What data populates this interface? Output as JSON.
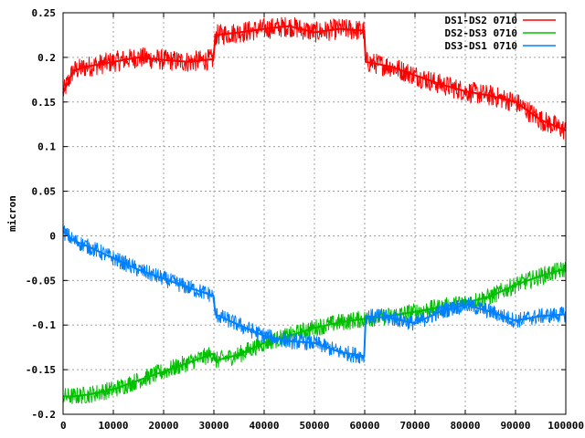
{
  "chart_data": {
    "type": "line",
    "title": "",
    "xlabel": "",
    "ylabel": "micron",
    "xlim": [
      0,
      100000
    ],
    "ylim": [
      -0.2,
      0.25
    ],
    "grid": true,
    "legend_position": "top-right",
    "x_ticks": [
      0,
      10000,
      20000,
      30000,
      40000,
      50000,
      60000,
      70000,
      80000,
      90000,
      100000
    ],
    "x_tick_labels": [
      "0",
      "10000",
      "20000",
      "30000",
      "40000",
      "50000",
      "60000",
      "70000",
      "80000",
      "90000",
      "100000"
    ],
    "y_ticks": [
      -0.2,
      -0.15,
      -0.1,
      -0.05,
      0,
      0.05,
      0.1,
      0.15,
      0.2,
      0.25
    ],
    "y_tick_labels": [
      "-0.2",
      "-0.15",
      "-0.1",
      "-0.05",
      "0",
      "0.05",
      "0.1",
      "0.15",
      "0.2",
      "0.25"
    ],
    "series": [
      {
        "name": "DS1-DS2 0710",
        "color": "#ff0000",
        "x": [
          0,
          2000,
          5000,
          10000,
          15000,
          20000,
          25000,
          29900,
          30300,
          35000,
          40000,
          45000,
          50000,
          55000,
          59900,
          60200,
          65000,
          70000,
          75000,
          80000,
          85000,
          90000,
          95000,
          100000
        ],
        "y": [
          0.16,
          0.185,
          0.19,
          0.195,
          0.2,
          0.197,
          0.195,
          0.198,
          0.225,
          0.228,
          0.232,
          0.235,
          0.228,
          0.232,
          0.23,
          0.195,
          0.19,
          0.18,
          0.17,
          0.162,
          0.157,
          0.15,
          0.13,
          0.118
        ]
      },
      {
        "name": "DS2-DS3 0710",
        "color": "#00c000",
        "x": [
          0,
          2000,
          5000,
          10000,
          15000,
          20000,
          25000,
          29900,
          30300,
          35000,
          40000,
          45000,
          50000,
          55000,
          59900,
          60200,
          65000,
          70000,
          75000,
          80000,
          85000,
          90000,
          95000,
          100000
        ],
        "y": [
          -0.18,
          -0.18,
          -0.178,
          -0.172,
          -0.162,
          -0.152,
          -0.142,
          -0.132,
          -0.14,
          -0.133,
          -0.12,
          -0.112,
          -0.103,
          -0.097,
          -0.093,
          -0.093,
          -0.09,
          -0.085,
          -0.08,
          -0.075,
          -0.068,
          -0.055,
          -0.045,
          -0.037
        ]
      },
      {
        "name": "DS3-DS1 0710",
        "color": "#0080ff",
        "x": [
          0,
          2000,
          5000,
          10000,
          15000,
          20000,
          25000,
          29900,
          30300,
          35000,
          40000,
          45000,
          50000,
          55000,
          59900,
          60200,
          65000,
          70000,
          75000,
          80000,
          85000,
          90000,
          95000,
          100000
        ],
        "y": [
          0.005,
          -0.005,
          -0.012,
          -0.025,
          -0.038,
          -0.048,
          -0.058,
          -0.067,
          -0.088,
          -0.1,
          -0.112,
          -0.118,
          -0.12,
          -0.13,
          -0.135,
          -0.09,
          -0.092,
          -0.098,
          -0.085,
          -0.077,
          -0.085,
          -0.095,
          -0.09,
          -0.088
        ]
      }
    ]
  }
}
